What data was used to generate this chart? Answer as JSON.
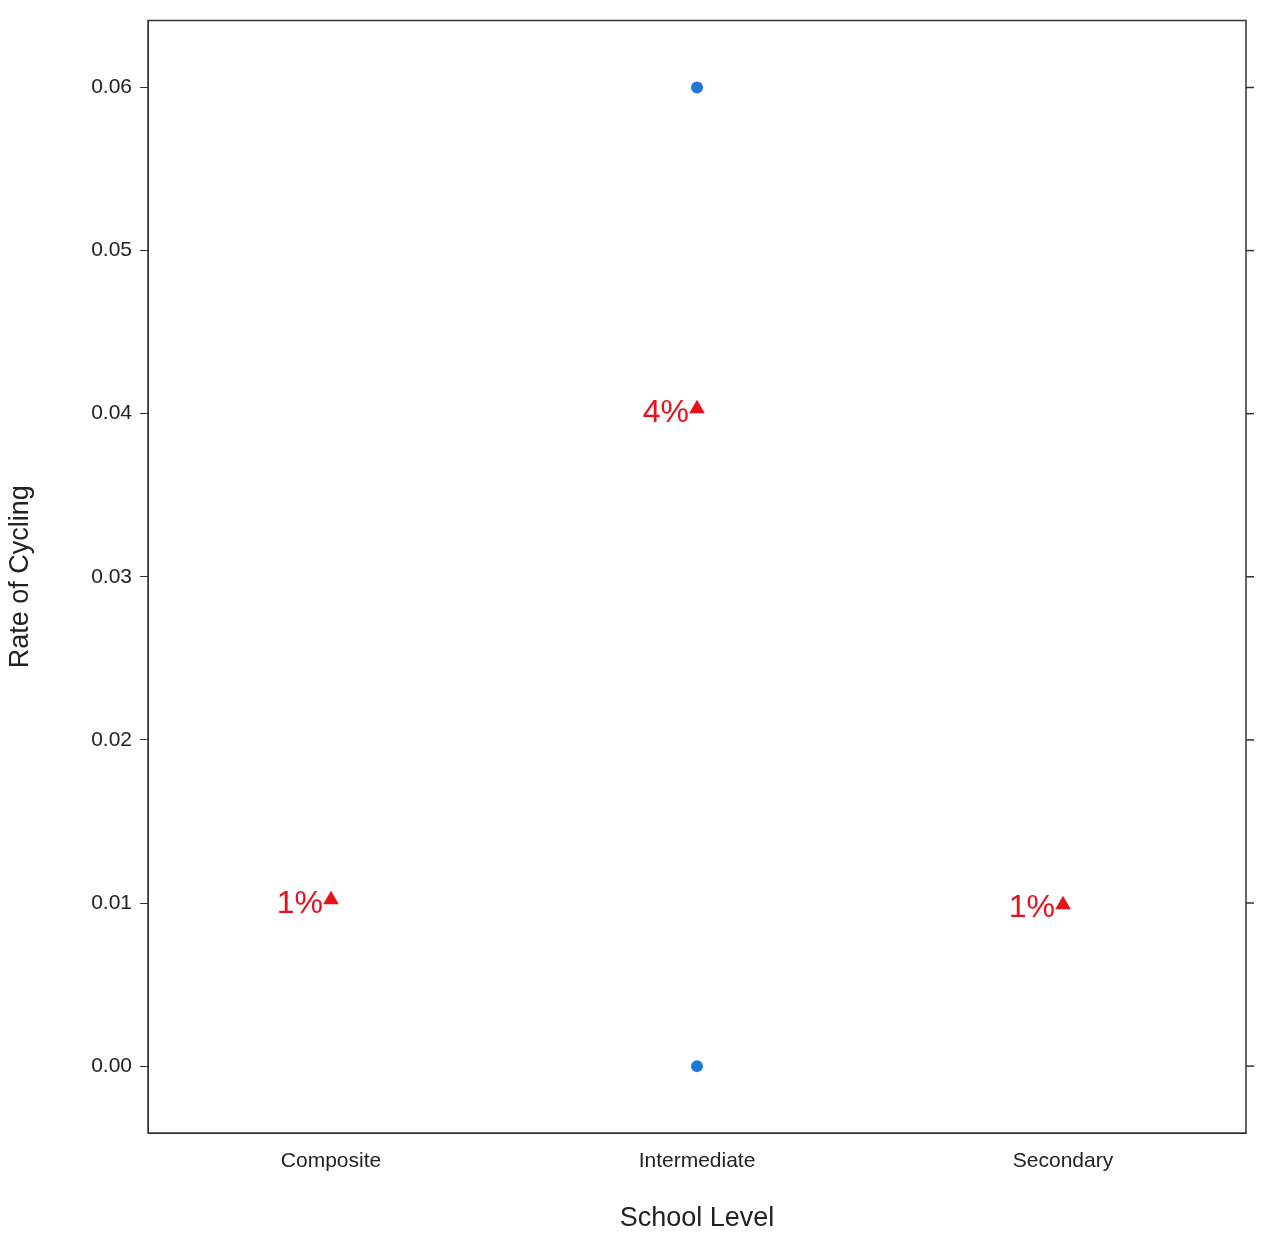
{
  "chart_data": {
    "type": "scatter",
    "xlabel": "School Level",
    "ylabel": "Rate of Cycling",
    "categories": [
      "Composite",
      "Intermediate",
      "Secondary"
    ],
    "series": [
      {
        "color": "#1e78d8",
        "x": [
          "Intermediate",
          "Intermediate"
        ],
        "values": [
          0.06,
          0
        ],
        "marker": "circle"
      },
      {
        "color": "#e8101a",
        "values": [
          0.0102,
          0.0403,
          0.0099
        ],
        "marker": "triangle",
        "value_labels": [
          "1%",
          "4%",
          "1%"
        ]
      }
    ],
    "ylim": [
      -0.0041,
      0.0641
    ],
    "yticks": [
      {
        "value": 0,
        "label": "0.00"
      },
      0.01,
      0.02,
      0.03,
      0.04,
      0.05,
      0.06
    ],
    "grid": false,
    "legend": false
  }
}
